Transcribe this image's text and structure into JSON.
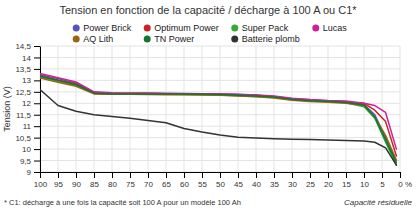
{
  "chart_data": {
    "type": "line",
    "title": "Tension en fonction de la capacité / décharge à 100 A ou C1*",
    "ylabel": "Tension (V)",
    "xlabel": "Capacité résiduelle",
    "footnote": "* C1: décharge à une fois la capacité soit 100 A pour un modèle 100 Ah",
    "annotations": [
      "%"
    ],
    "xlim": [
      100,
      0
    ],
    "ylim": [
      9,
      14.5
    ],
    "xticks": [
      0,
      5,
      10,
      15,
      20,
      25,
      30,
      35,
      40,
      45,
      50,
      55,
      60,
      65,
      70,
      75,
      80,
      85,
      90,
      95,
      100
    ],
    "yticks": [
      9,
      {
        "value": 9.5,
        "label": "9,5"
      },
      10,
      {
        "value": 10.5,
        "label": "10,5"
      },
      11,
      {
        "value": 11.5,
        "label": "11,5"
      },
      12,
      {
        "value": 12.5,
        "label": "12,5"
      },
      13,
      {
        "value": 13.5,
        "label": "13,5"
      },
      14,
      {
        "value": 14.5,
        "label": "14,5"
      }
    ],
    "grid": true,
    "legend": "top",
    "x": [
      100,
      95,
      90,
      85,
      80,
      75,
      70,
      65,
      60,
      55,
      50,
      45,
      40,
      35,
      30,
      25,
      20,
      15,
      10,
      7,
      4,
      1
    ],
    "series": [
      {
        "name": "Power Brick",
        "color": "#5555bb",
        "values": [
          13.25,
          13.08,
          12.88,
          12.46,
          12.43,
          12.43,
          12.43,
          12.42,
          12.42,
          12.41,
          12.4,
          12.38,
          12.35,
          12.3,
          12.2,
          12.15,
          12.1,
          12.05,
          11.95,
          11.5,
          10.5,
          9.5
        ]
      },
      {
        "name": "Optimum Power",
        "color": "#cc2222",
        "values": [
          13.2,
          13.02,
          12.84,
          12.46,
          12.43,
          12.43,
          12.43,
          12.42,
          12.41,
          12.4,
          12.39,
          12.37,
          12.35,
          12.28,
          12.18,
          12.13,
          12.1,
          12.05,
          12.0,
          11.7,
          11.2,
          9.7
        ]
      },
      {
        "name": "Super Pack",
        "color": "#33aa33",
        "values": [
          13.15,
          12.96,
          12.78,
          12.43,
          12.41,
          12.41,
          12.4,
          12.39,
          12.38,
          12.37,
          12.36,
          12.33,
          12.3,
          12.25,
          12.15,
          12.1,
          12.08,
          12.02,
          11.85,
          11.35,
          10.3,
          9.3
        ]
      },
      {
        "name": "Lucas",
        "color": "#cc2299",
        "values": [
          13.3,
          13.12,
          12.93,
          12.5,
          12.46,
          12.45,
          12.45,
          12.44,
          12.43,
          12.42,
          12.41,
          12.39,
          12.36,
          12.32,
          12.22,
          12.16,
          12.12,
          12.1,
          12.0,
          11.9,
          11.6,
          10.0
        ]
      },
      {
        "name": "AQ Lith",
        "color": "#996611",
        "values": [
          13.1,
          12.92,
          12.74,
          12.41,
          12.39,
          12.39,
          12.38,
          12.37,
          12.37,
          12.36,
          12.35,
          12.32,
          12.29,
          12.23,
          12.13,
          12.08,
          12.05,
          12.0,
          11.9,
          11.4,
          10.6,
          9.5
        ]
      },
      {
        "name": "TN Power",
        "color": "#117733",
        "values": [
          13.18,
          13.0,
          12.82,
          12.44,
          12.41,
          12.41,
          12.41,
          12.4,
          12.4,
          12.39,
          12.38,
          12.35,
          12.32,
          12.27,
          12.17,
          12.11,
          12.09,
          12.03,
          11.92,
          11.4,
          10.4,
          9.4
        ]
      },
      {
        "name": "Batterie plomb",
        "color": "#333333",
        "values": [
          12.6,
          11.9,
          11.65,
          11.5,
          11.42,
          11.35,
          11.25,
          11.15,
          10.9,
          10.75,
          10.62,
          10.52,
          10.48,
          10.45,
          10.43,
          10.42,
          10.4,
          10.38,
          10.35,
          10.3,
          10.05,
          9.3
        ]
      }
    ]
  }
}
